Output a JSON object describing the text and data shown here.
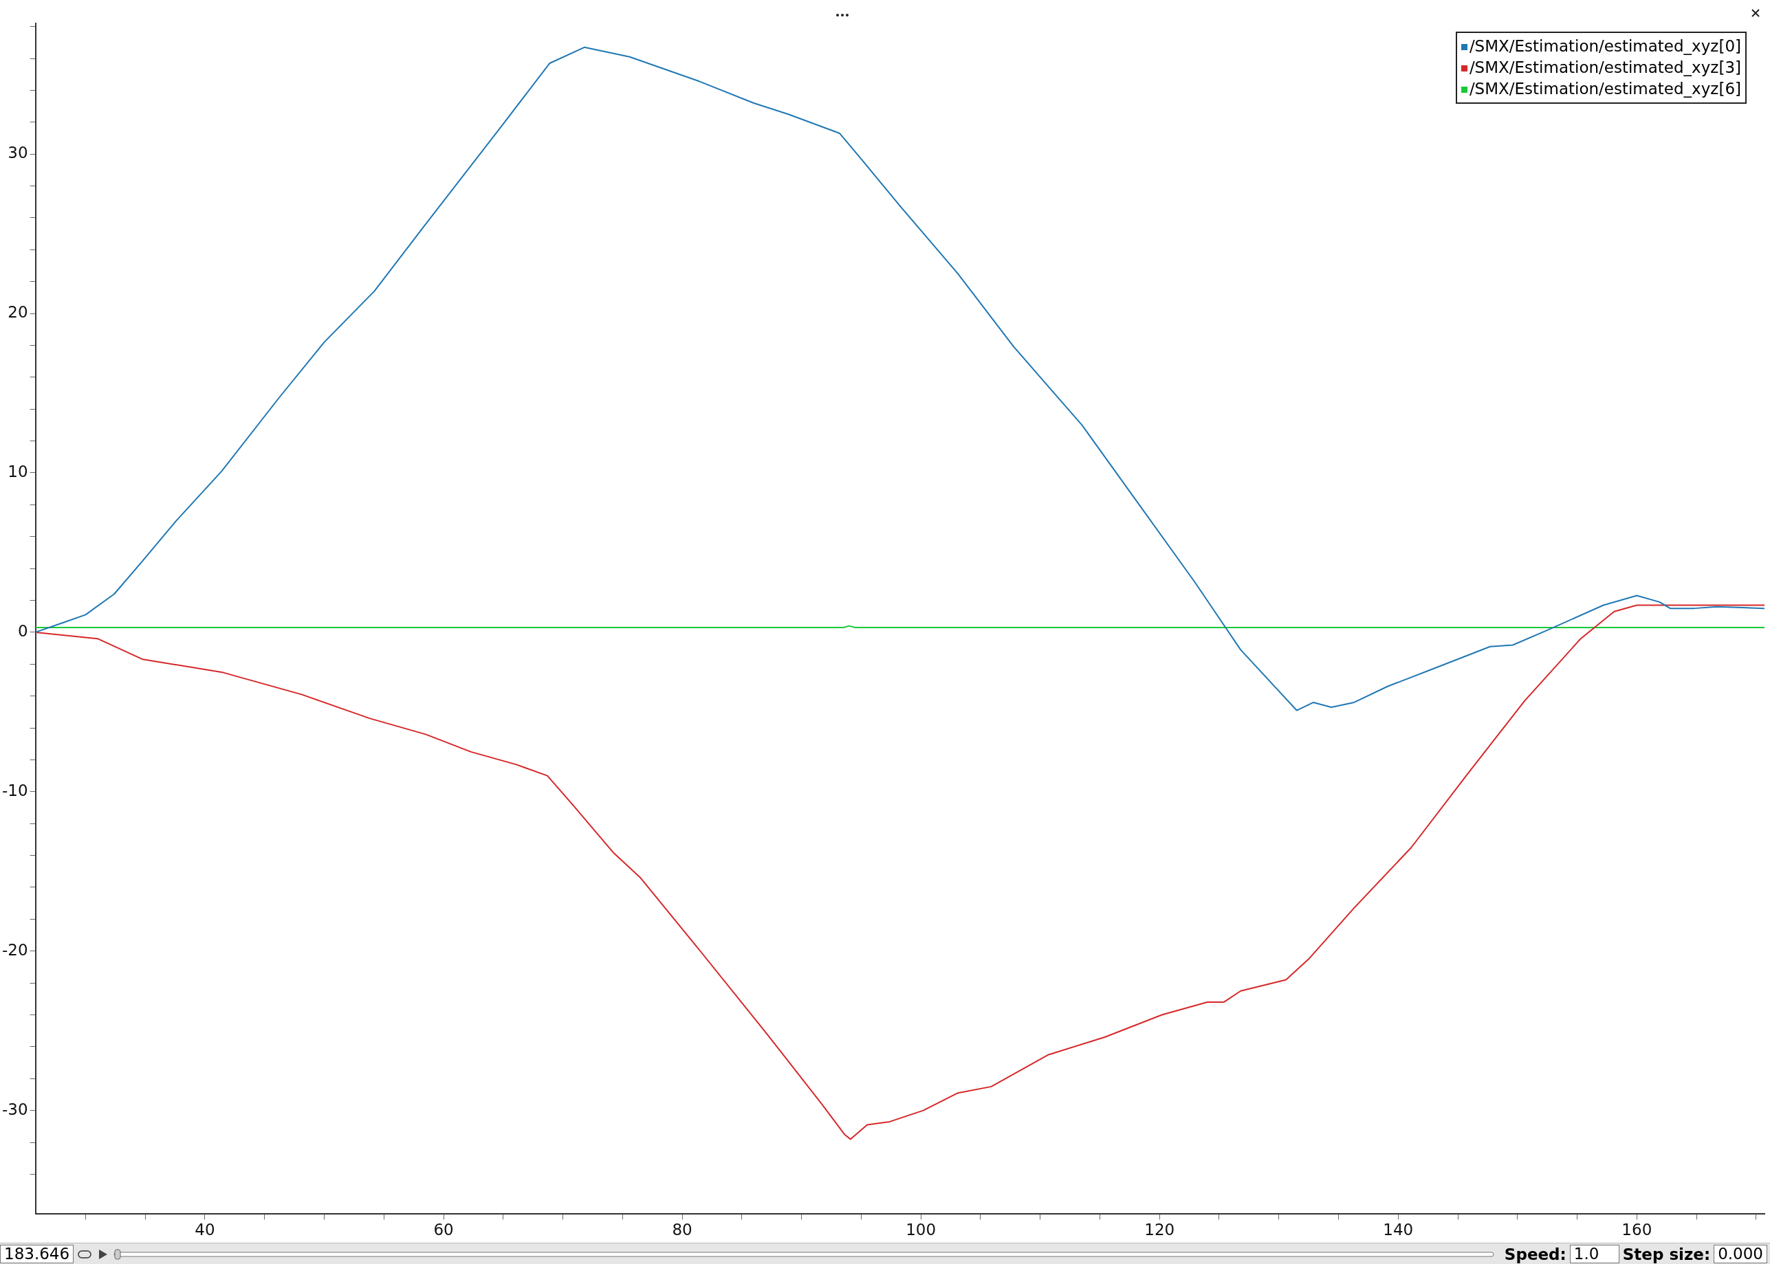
{
  "chart_data": {
    "type": "line",
    "legend": "top right",
    "marker": "none",
    "line_style": "solid",
    "grid": false,
    "xlim": [
      25.8,
      170.7
    ],
    "ylim": [
      -36.5,
      38.2
    ],
    "xticks": [
      {
        "value": 30,
        "label": null
      },
      {
        "value": 35,
        "label": null
      },
      40,
      {
        "value": 45,
        "label": null
      },
      {
        "value": 50,
        "label": null
      },
      {
        "value": 55,
        "label": null
      },
      60,
      {
        "value": 65,
        "label": null
      },
      {
        "value": 70,
        "label": null
      },
      {
        "value": 75,
        "label": null
      },
      80,
      {
        "value": 85,
        "label": null
      },
      {
        "value": 90,
        "label": null
      },
      {
        "value": 95,
        "label": null
      },
      100,
      {
        "value": 105,
        "label": null
      },
      {
        "value": 110,
        "label": null
      },
      {
        "value": 115,
        "label": null
      },
      120,
      {
        "value": 125,
        "label": null
      },
      {
        "value": 130,
        "label": null
      },
      {
        "value": 135,
        "label": null
      },
      140,
      {
        "value": 145,
        "label": null
      },
      {
        "value": 150,
        "label": null
      },
      {
        "value": 155,
        "label": null
      },
      160,
      {
        "value": 165,
        "label": null
      },
      {
        "value": 170,
        "label": null
      }
    ],
    "yticks": [
      {
        "value": -34,
        "label": null
      },
      {
        "value": -32,
        "label": null
      },
      -30,
      {
        "value": -28,
        "label": null
      },
      {
        "value": -26,
        "label": null
      },
      {
        "value": -24,
        "label": null
      },
      {
        "value": -22,
        "label": null
      },
      -20,
      {
        "value": -18,
        "label": null
      },
      {
        "value": -16,
        "label": null
      },
      {
        "value": -14,
        "label": null
      },
      {
        "value": -12,
        "label": null
      },
      -10,
      {
        "value": -8,
        "label": null
      },
      {
        "value": -6,
        "label": null
      },
      {
        "value": -4,
        "label": null
      },
      {
        "value": -2,
        "label": null
      },
      0,
      {
        "value": 2,
        "label": null
      },
      {
        "value": 4,
        "label": null
      },
      {
        "value": 6,
        "label": null
      },
      {
        "value": 8,
        "label": null
      },
      10,
      {
        "value": 12,
        "label": null
      },
      {
        "value": 14,
        "label": null
      },
      {
        "value": 16,
        "label": null
      },
      {
        "value": 18,
        "label": null
      },
      20,
      {
        "value": 22,
        "label": null
      },
      {
        "value": 24,
        "label": null
      },
      {
        "value": 26,
        "label": null
      },
      {
        "value": 28,
        "label": null
      },
      30,
      {
        "value": 32,
        "label": null
      },
      {
        "value": 34,
        "label": null
      },
      {
        "value": 36,
        "label": null
      },
      {
        "value": 38,
        "label": null
      }
    ],
    "annotations": [
      "183.646",
      "Speed:",
      "1.0",
      "Step size:",
      "0.000"
    ],
    "series": [
      {
        "name": "/SMX/Estimation/estimated_xyz[0]",
        "color": "#1f77b4",
        "x": [
          25.8,
          28.1,
          30,
          32.4,
          34.8,
          37.6,
          41.4,
          46.2,
          50,
          54.2,
          58.5,
          64.7,
          68.9,
          71.8,
          75.6,
          81.3,
          86,
          88.9,
          93.2,
          95.1,
          98.3,
          103.1,
          107.8,
          113.5,
          118.3,
          123,
          126.8,
          131.5,
          132.9,
          134.4,
          136.3,
          139.1,
          142.9,
          147.7,
          149.6,
          152.4,
          157.2,
          160,
          161.9,
          162.8,
          164.8,
          166.7,
          170.7
        ],
        "values": [
          0,
          0.6,
          1.1,
          2.4,
          4.5,
          7,
          10.1,
          14.7,
          18.2,
          21.4,
          25.6,
          31.6,
          35.7,
          36.7,
          36.1,
          34.6,
          33.2,
          32.5,
          31.3,
          29.6,
          26.7,
          22.5,
          17.9,
          13,
          8,
          3.1,
          -1.1,
          -4.9,
          -4.4,
          -4.7,
          -4.4,
          -3.4,
          -2.3,
          -0.9,
          -0.8,
          0.1,
          1.7,
          2.3,
          1.9,
          1.5,
          1.5,
          1.6,
          1.5
        ]
      },
      {
        "name": "/SMX/Estimation/estimated_xyz[3]",
        "color": "#d62728",
        "x": [
          25.8,
          31,
          34.8,
          41.4,
          48.1,
          53.8,
          58.5,
          62.3,
          66.1,
          68.7,
          70.8,
          74.2,
          76.5,
          81.3,
          87,
          91.7,
          93.6,
          94.1,
          95.5,
          97.4,
          100.2,
          103.1,
          105.9,
          110.7,
          115.4,
          120.2,
          124,
          125.4,
          126.8,
          130.6,
          132.5,
          136.3,
          141.1,
          145.8,
          150.6,
          155.3,
          158.1,
          160,
          162.8,
          166.7,
          170.7
        ],
        "values": [
          0,
          -0.4,
          -1.7,
          -2.5,
          -3.9,
          -5.4,
          -6.4,
          -7.5,
          -8.3,
          -9,
          -10.8,
          -13.8,
          -15.4,
          -19.8,
          -25.1,
          -29.6,
          -31.5,
          -31.8,
          -30.9,
          -30.7,
          -30,
          -28.9,
          -28.5,
          -26.5,
          -25.4,
          -24,
          -23.2,
          -23.2,
          -22.5,
          -21.8,
          -20.5,
          -17.3,
          -13.5,
          -8.9,
          -4.3,
          -0.4,
          1.3,
          1.7,
          1.7,
          1.7,
          1.7
        ]
      },
      {
        "name": "/SMX/Estimation/estimated_xyz[6]",
        "color": "#1ac938",
        "x": [
          25.8,
          93.5,
          94,
          94.5,
          170.7
        ],
        "values": [
          0.3,
          0.3,
          0.4,
          0.3,
          0.3
        ]
      }
    ]
  }
}
